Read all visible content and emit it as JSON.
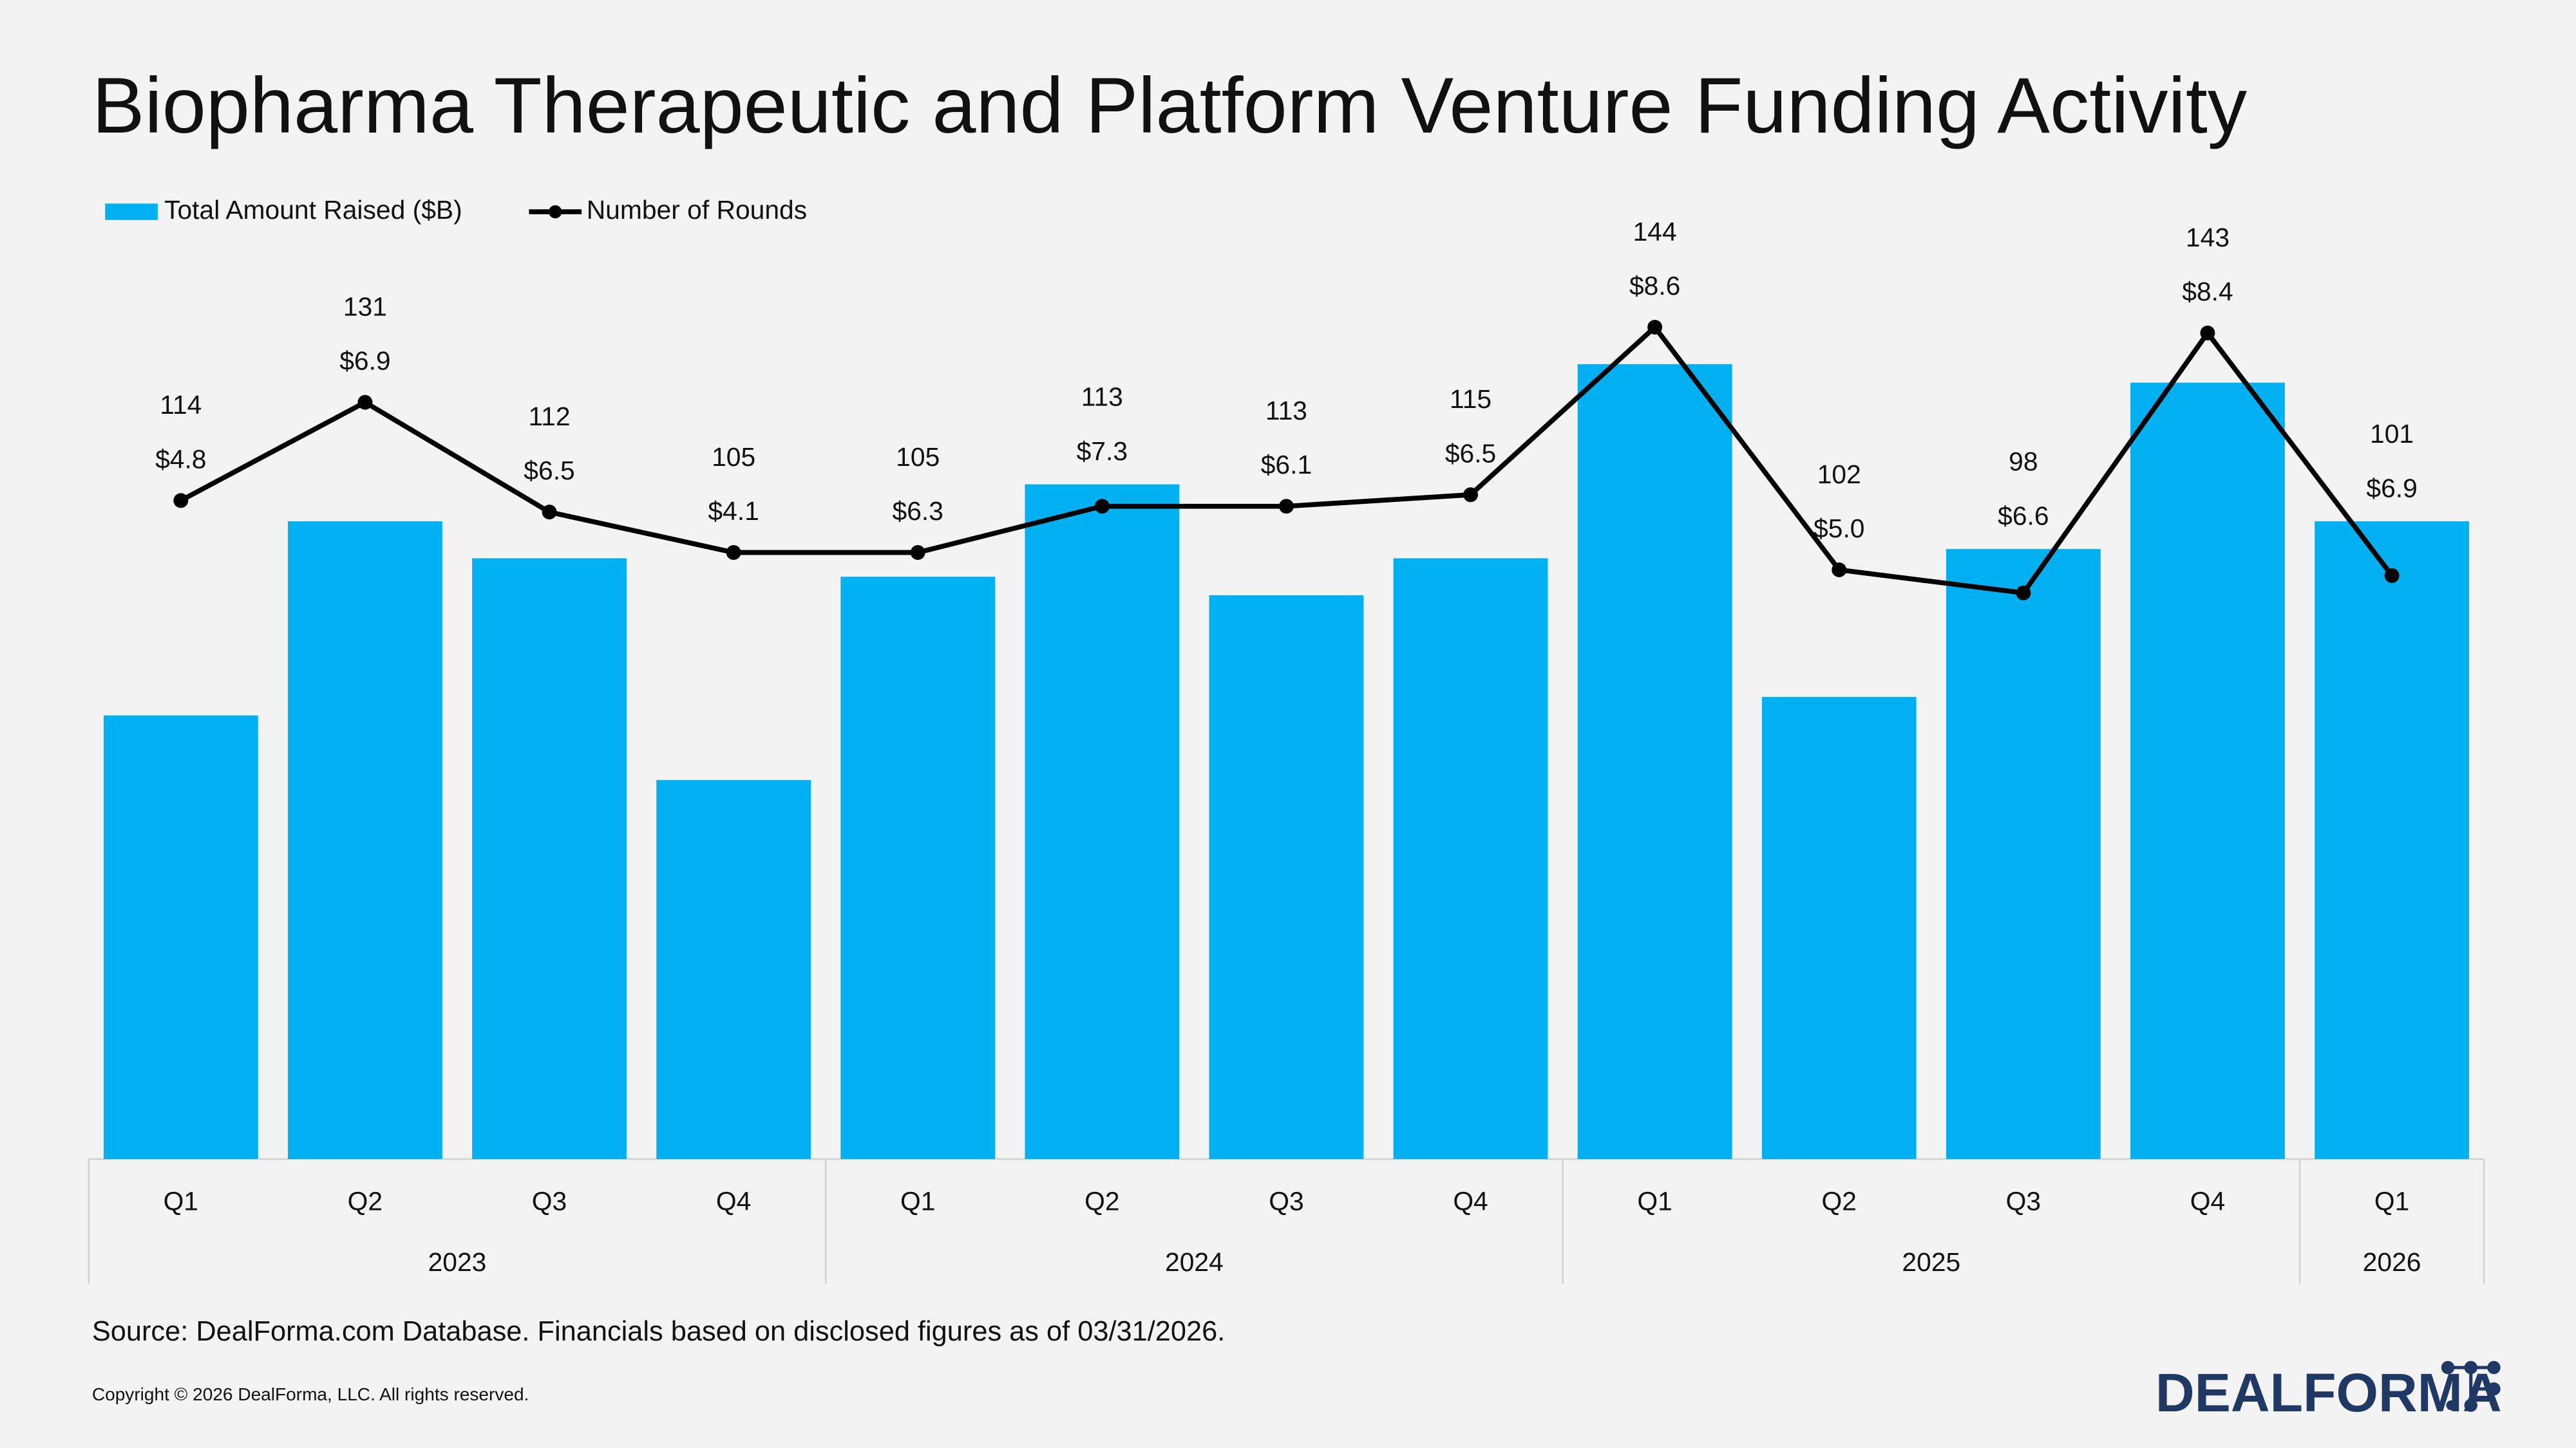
{
  "chart_data": {
    "type": "bar-line",
    "title": "Biopharma Therapeutic and Platform Venture Funding Activity",
    "groups": [
      {
        "name": "2023",
        "categories": [
          "Q1",
          "Q2",
          "Q3",
          "Q4"
        ]
      },
      {
        "name": "2024",
        "categories": [
          "Q1",
          "Q2",
          "Q3",
          "Q4"
        ]
      },
      {
        "name": "2025",
        "categories": [
          "Q1",
          "Q2",
          "Q3",
          "Q4"
        ]
      },
      {
        "name": "2026",
        "categories": [
          "Q1"
        ]
      }
    ],
    "series": [
      {
        "name": "Total Amount Raised ($B)",
        "type": "bar",
        "color": "#00b0f0",
        "values": [
          4.8,
          6.9,
          6.5,
          4.1,
          6.3,
          7.3,
          6.1,
          6.5,
          8.6,
          5.0,
          6.6,
          8.4,
          6.9
        ],
        "value_labels": [
          "$4.8",
          "$6.9",
          "$6.5",
          "$4.1",
          "$6.3",
          "$7.3",
          "$6.1",
          "$6.5",
          "$8.6",
          "$5.0",
          "$6.6",
          "$8.4",
          "$6.9"
        ]
      },
      {
        "name": "Number of Rounds",
        "type": "line",
        "axis": "y2",
        "color": "#000000",
        "values": [
          114,
          131,
          112,
          105,
          105,
          113,
          113,
          115,
          144,
          102,
          98,
          143,
          101
        ]
      }
    ],
    "ylim": [
      0,
      10
    ],
    "y2lim": [
      0,
      160
    ],
    "legend": "top-left",
    "source": "Source: DealForma.com Database. Financials based on disclosed figures as of 03/31/2026.",
    "copyright": "Copyright © 2026 DealForma, LLC. All rights reserved.",
    "logo": "DEALFORMA"
  }
}
